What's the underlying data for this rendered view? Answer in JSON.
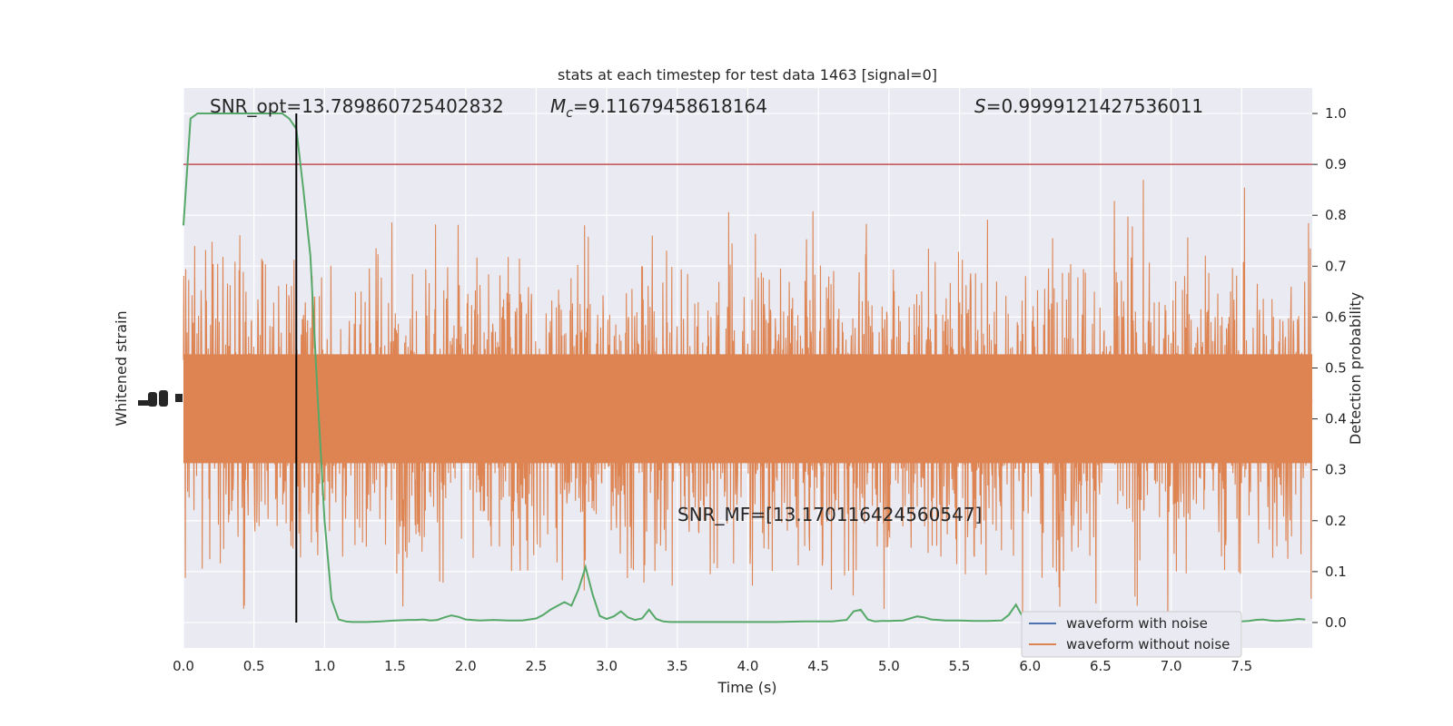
{
  "chart_data": {
    "type": "line",
    "title": "stats at each timestep for test data 1463 [signal=0]",
    "xlabel": "Time (s)",
    "ylabel_left": "Whitened strain",
    "ylabel_right": "Detection probability",
    "xlim": [
      0.0,
      8.0
    ],
    "ylim_right": [
      -0.05,
      1.05
    ],
    "x_ticks": [
      "0.0",
      "0.5",
      "1.0",
      "1.5",
      "2.0",
      "2.5",
      "3.0",
      "3.5",
      "4.0",
      "4.5",
      "5.0",
      "5.5",
      "6.0",
      "6.5",
      "7.0",
      "7.5"
    ],
    "y_ticks_right": [
      "0.0",
      "0.1",
      "0.2",
      "0.3",
      "0.4",
      "0.5",
      "0.6",
      "0.7",
      "0.8",
      "0.9",
      "1.0"
    ],
    "grid": true,
    "legend_position": "lower-right",
    "annotations": {
      "snr_opt": "SNR_opt=13.789860725402832",
      "mc_prefix": "M",
      "mc_sub": "c",
      "mc_value": "=9.11679458618164",
      "s_prefix": "S",
      "s_value": "=0.9999121427536011",
      "snr_mf": "SNR_MF=[13.170116424560547]"
    },
    "threshold": {
      "value": 0.9,
      "color": "#c44e52"
    },
    "marker_time": 0.8,
    "series": [
      {
        "name": "waveform with noise",
        "color": "#4c72b0",
        "axis": "left"
      },
      {
        "name": "waveform without noise",
        "color": "#dd8452",
        "axis": "left"
      },
      {
        "color": "#55a868",
        "axis": "right",
        "x": [
          0.0,
          0.05,
          0.1,
          0.15,
          0.2,
          0.3,
          0.4,
          0.5,
          0.6,
          0.7,
          0.75,
          0.8,
          0.85,
          0.9,
          0.95,
          1.0,
          1.05,
          1.1,
          1.15,
          1.2,
          1.3,
          1.4,
          1.5,
          1.6,
          1.65,
          1.7,
          1.75,
          1.8,
          1.85,
          1.9,
          1.95,
          2.0,
          2.1,
          2.2,
          2.3,
          2.4,
          2.5,
          2.55,
          2.6,
          2.7,
          2.75,
          2.8,
          2.85,
          2.9,
          2.95,
          3.0,
          3.05,
          3.1,
          3.15,
          3.2,
          3.25,
          3.3,
          3.35,
          3.4,
          3.45,
          3.5,
          3.55,
          3.6,
          3.7,
          3.8,
          3.9,
          4.0,
          4.2,
          4.4,
          4.6,
          4.7,
          4.75,
          4.8,
          4.85,
          4.9,
          4.95,
          5.0,
          5.1,
          5.2,
          5.25,
          5.3,
          5.35,
          5.4,
          5.5,
          5.6,
          5.7,
          5.8,
          5.85,
          5.9,
          5.95,
          6.0,
          6.05,
          6.1,
          6.15,
          6.2,
          6.3,
          6.4,
          6.5,
          6.6,
          6.7,
          6.8,
          6.9,
          7.0,
          7.1,
          7.2,
          7.3,
          7.4,
          7.5,
          7.55,
          7.6,
          7.65,
          7.7,
          7.75,
          7.8,
          7.85,
          7.9,
          7.95
        ],
        "y": [
          0.78,
          0.99,
          1.0,
          1.0,
          1.0,
          1.0,
          1.0,
          1.0,
          1.0,
          1.0,
          0.99,
          0.97,
          0.85,
          0.72,
          0.45,
          0.2,
          0.045,
          0.006,
          0.002,
          0.001,
          0.001,
          0.002,
          0.004,
          0.005,
          0.005,
          0.006,
          0.004,
          0.005,
          0.01,
          0.014,
          0.011,
          0.006,
          0.004,
          0.005,
          0.004,
          0.004,
          0.008,
          0.015,
          0.025,
          0.04,
          0.033,
          0.065,
          0.109,
          0.055,
          0.013,
          0.007,
          0.012,
          0.022,
          0.01,
          0.005,
          0.008,
          0.025,
          0.007,
          0.002,
          0.001,
          0.001,
          0.001,
          0.001,
          0.001,
          0.001,
          0.001,
          0.001,
          0.001,
          0.002,
          0.002,
          0.005,
          0.022,
          0.025,
          0.006,
          0.002,
          0.003,
          0.003,
          0.004,
          0.012,
          0.01,
          0.006,
          0.005,
          0.004,
          0.004,
          0.003,
          0.003,
          0.004,
          0.015,
          0.035,
          0.01,
          0.003,
          0.002,
          0.002,
          0.002,
          0.002,
          0.002,
          0.002,
          0.002,
          0.002,
          0.002,
          0.002,
          0.002,
          0.002,
          0.002,
          0.002,
          0.002,
          0.002,
          0.002,
          0.003,
          0.005,
          0.006,
          0.004,
          0.003,
          0.004,
          0.005,
          0.007,
          0.006
        ]
      }
    ]
  }
}
